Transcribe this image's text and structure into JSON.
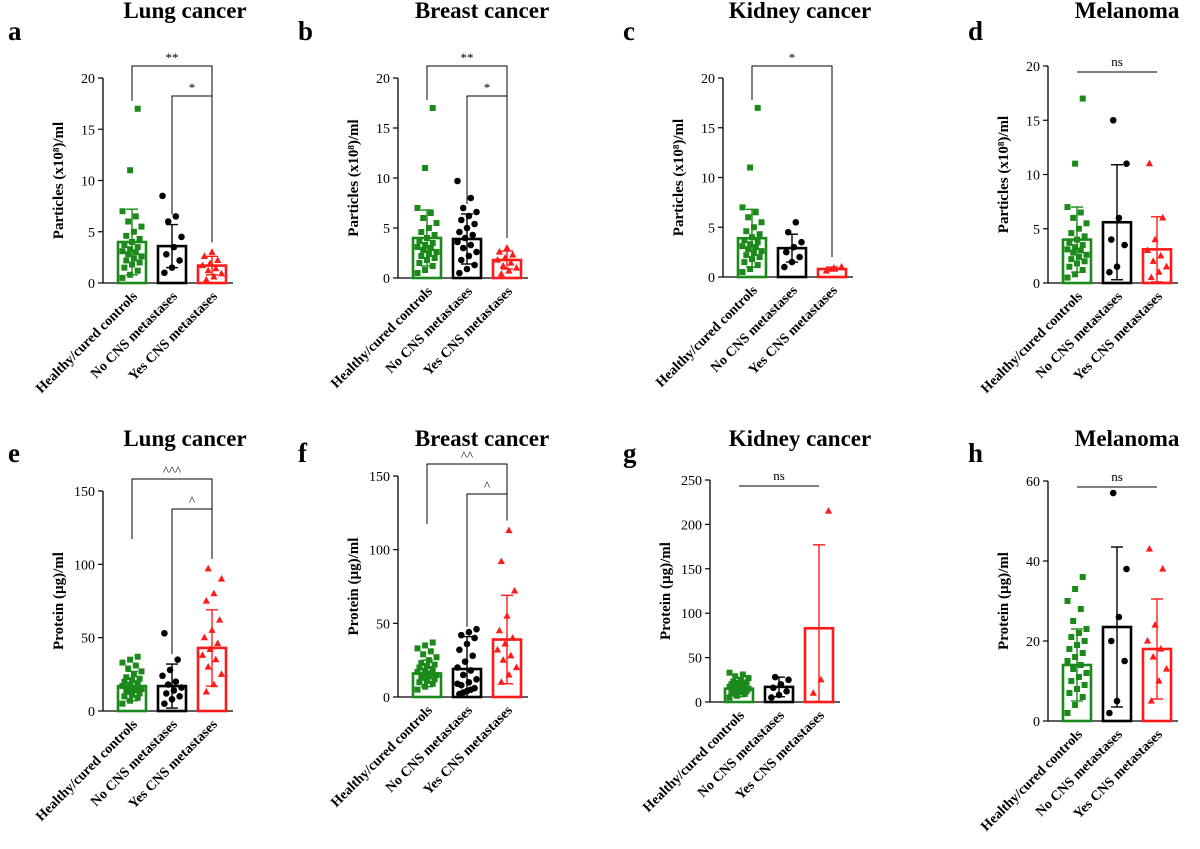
{
  "colors": {
    "green": "#1b8a1b",
    "black": "#000000",
    "red": "#ff1a1a"
  },
  "chart_data": [
    {
      "panel": "a",
      "type": "bar",
      "title": "Lung cancer",
      "ylabel": "Particles (x10⁸)/ml",
      "ylim": [
        0,
        20
      ],
      "yticks": [
        0,
        5,
        10,
        15,
        20
      ],
      "categories": [
        "Healthy/cured controls",
        "No CNS metastases",
        "Yes CNS metastases"
      ],
      "means": [
        4,
        3.6,
        1.7
      ],
      "sd": [
        3.2,
        2.1,
        0.9
      ],
      "marker": [
        "square",
        "circle",
        "triangle"
      ],
      "points": [
        [
          0.5,
          0.8,
          1.2,
          1.5,
          1.8,
          2,
          2.2,
          2.4,
          2.6,
          2.8,
          3,
          3.1,
          3.3,
          3.5,
          3.7,
          4,
          4.3,
          4.6,
          5,
          5.5,
          6,
          6.5,
          7,
          11,
          17
        ],
        [
          1,
          1.5,
          2.2,
          2.8,
          3.5,
          4.5,
          6,
          6.5,
          8.5
        ],
        [
          0.3,
          0.6,
          0.9,
          1.2,
          1.4,
          1.7,
          1.9,
          2.2,
          2.6,
          3
        ]
      ],
      "brackets": [
        {
          "from": 0,
          "to": 2,
          "label": "**"
        },
        {
          "from": 1,
          "to": 2,
          "label": "*"
        }
      ]
    },
    {
      "panel": "b",
      "type": "bar",
      "title": "Breast cancer",
      "ylabel": "Particles (x10⁸)/ml",
      "ylim": [
        0,
        20
      ],
      "yticks": [
        0,
        5,
        10,
        15,
        20
      ],
      "categories": [
        "Healthy/cured controls",
        "No CNS metastases",
        "Yes CNS metastases"
      ],
      "means": [
        4,
        3.9,
        1.8
      ],
      "sd": [
        2.8,
        2.5,
        0.9
      ],
      "marker": [
        "square",
        "circle",
        "triangle"
      ],
      "points": [
        [
          0.5,
          0.8,
          1.2,
          1.5,
          1.8,
          2,
          2.2,
          2.4,
          2.6,
          2.8,
          3,
          3.1,
          3.3,
          3.5,
          3.7,
          4,
          4.3,
          4.6,
          5,
          5.5,
          6,
          6.5,
          7,
          11,
          17
        ],
        [
          0.5,
          0.9,
          1.3,
          1.8,
          2.2,
          2.6,
          3,
          3.3,
          3.6,
          4,
          4.3,
          4.6,
          5,
          5.4,
          5.8,
          6.2,
          6.6,
          7,
          8,
          9.7
        ],
        [
          0.4,
          0.7,
          1,
          1.2,
          1.5,
          1.8,
          2,
          2.3,
          2.6,
          3
        ]
      ],
      "brackets": [
        {
          "from": 0,
          "to": 2,
          "label": "**"
        },
        {
          "from": 1,
          "to": 2,
          "label": "*"
        }
      ]
    },
    {
      "panel": "c",
      "type": "bar",
      "title": "Kidney cancer",
      "ylabel": "Particles (x10⁸)/ml",
      "ylim": [
        0,
        20
      ],
      "yticks": [
        0,
        5,
        10,
        15,
        20
      ],
      "categories": [
        "Healthy/cured controls",
        "No CNS metastases",
        "Yes CNS metastases"
      ],
      "means": [
        3.9,
        2.9,
        0.8
      ],
      "sd": [
        2.9,
        1.4,
        0.2
      ],
      "marker": [
        "square",
        "circle",
        "triangle"
      ],
      "points": [
        [
          0.5,
          0.8,
          1.2,
          1.5,
          1.8,
          2,
          2.2,
          2.4,
          2.6,
          2.8,
          3,
          3.1,
          3.3,
          3.5,
          3.7,
          4,
          4.3,
          4.6,
          5,
          5.5,
          6,
          6.5,
          7,
          11,
          17
        ],
        [
          1,
          1.5,
          2,
          2.5,
          3,
          3.5,
          4.5,
          5.5
        ],
        [
          0.6,
          0.9,
          1
        ]
      ],
      "brackets": [
        {
          "from": 0,
          "to": 2,
          "label": "*"
        }
      ]
    },
    {
      "panel": "d",
      "type": "bar",
      "title": "Melanoma",
      "ylabel": "Particles (x10⁸)/ml",
      "ylim": [
        0,
        20
      ],
      "yticks": [
        0,
        5,
        10,
        15,
        20
      ],
      "categories": [
        "Healthy/cured controls",
        "No CNS metastases",
        "Yes CNS metastases"
      ],
      "means": [
        4,
        5.6,
        3.1
      ],
      "sd": [
        3,
        5.3,
        3
      ],
      "marker": [
        "square",
        "circle",
        "triangle"
      ],
      "points": [
        [
          0.5,
          0.8,
          1.2,
          1.5,
          1.8,
          2,
          2.2,
          2.4,
          2.6,
          2.8,
          3,
          3.1,
          3.3,
          3.5,
          3.7,
          4,
          4.3,
          4.6,
          5,
          5.5,
          6,
          6.5,
          7,
          11,
          17
        ],
        [
          1,
          1.5,
          3.5,
          4,
          6,
          11,
          15
        ],
        [
          0.5,
          1,
          1.5,
          2,
          2.5,
          3,
          4,
          6,
          11
        ]
      ],
      "brackets": [
        {
          "from": 0,
          "to": 2,
          "label": "ns",
          "flat": true
        }
      ]
    },
    {
      "panel": "e",
      "type": "bar",
      "title": "Lung cancer",
      "ylabel": "Protein (µg)/ml",
      "ylim": [
        0,
        150
      ],
      "yticks": [
        0,
        50,
        100,
        150
      ],
      "categories": [
        "Healthy/cured controls",
        "No CNS metastases",
        "Yes CNS metastases"
      ],
      "means": [
        17,
        17,
        43
      ],
      "sd": [
        10,
        15,
        26
      ],
      "marker": [
        "square",
        "circle",
        "triangle"
      ],
      "points": [
        [
          5,
          7,
          9,
          10,
          11,
          12,
          13,
          14,
          15,
          15,
          16,
          17,
          18,
          19,
          20,
          21,
          22,
          23,
          25,
          27,
          29,
          31,
          33,
          35,
          37
        ],
        [
          5,
          8,
          10,
          12,
          14,
          16,
          18,
          20,
          24,
          28,
          35,
          53
        ],
        [
          13,
          18,
          25,
          30,
          35,
          38,
          42,
          46,
          50,
          55,
          62,
          75,
          80,
          90,
          97
        ]
      ],
      "brackets": [
        {
          "from": 0,
          "to": 2,
          "label": "^^^"
        },
        {
          "from": 1,
          "to": 2,
          "label": "^"
        }
      ]
    },
    {
      "panel": "f",
      "type": "bar",
      "title": "Breast cancer",
      "ylabel": "Protein (µg)/ml",
      "ylim": [
        0,
        150
      ],
      "yticks": [
        0,
        50,
        100,
        150
      ],
      "categories": [
        "Healthy/cured controls",
        "No CNS metastases",
        "Yes CNS metastases"
      ],
      "means": [
        16,
        19,
        39
      ],
      "sd": [
        9,
        22,
        30
      ],
      "marker": [
        "square",
        "circle",
        "triangle"
      ],
      "points": [
        [
          5,
          7,
          9,
          10,
          11,
          12,
          13,
          14,
          15,
          15,
          16,
          17,
          18,
          19,
          20,
          21,
          22,
          23,
          25,
          27,
          29,
          31,
          33,
          35,
          37
        ],
        [
          2,
          4,
          6,
          8,
          10,
          12,
          15,
          18,
          20,
          24,
          28,
          32,
          36,
          40,
          42,
          44,
          46,
          3,
          5,
          9
        ],
        [
          10,
          15,
          20,
          25,
          28,
          32,
          36,
          40,
          45,
          55,
          72,
          92,
          113
        ]
      ],
      "brackets": [
        {
          "from": 0,
          "to": 2,
          "label": "^^"
        },
        {
          "from": 1,
          "to": 2,
          "label": "^"
        }
      ]
    },
    {
      "panel": "g",
      "type": "bar",
      "title": "Kidney cancer",
      "ylabel": "Protein (µg)/ml",
      "ylim": [
        0,
        250
      ],
      "yticks": [
        0,
        50,
        100,
        150,
        200,
        250
      ],
      "categories": [
        "Healthy/cured controls",
        "No CNS metastases",
        "Yes CNS metastases"
      ],
      "means": [
        15,
        17,
        83
      ],
      "sd": [
        9,
        11,
        94
      ],
      "marker": [
        "square",
        "circle",
        "triangle"
      ],
      "points": [
        [
          5,
          7,
          9,
          10,
          11,
          12,
          13,
          14,
          15,
          15,
          16,
          17,
          18,
          19,
          20,
          21,
          22,
          23,
          25,
          27,
          29,
          31,
          33
        ],
        [
          5,
          8,
          12,
          16,
          20,
          25,
          28
        ],
        [
          10,
          25,
          215
        ]
      ],
      "brackets": [
        {
          "from": 0,
          "to": 2,
          "label": "ns",
          "flat": true
        }
      ]
    },
    {
      "panel": "h",
      "type": "bar",
      "title": "Melanoma",
      "ylabel": "Protein (µg)/ml",
      "ylim": [
        0,
        60
      ],
      "yticks": [
        0,
        20,
        40,
        60
      ],
      "categories": [
        "Healthy/cured controls",
        "No CNS metastases",
        "Yes CNS metastases"
      ],
      "means": [
        14,
        23.5,
        18
      ],
      "sd": [
        9,
        20,
        12.5
      ],
      "marker": [
        "square",
        "circle",
        "triangle"
      ],
      "points": [
        [
          2,
          4,
          6,
          7,
          8,
          9,
          10,
          11,
          12,
          13,
          14,
          15,
          16,
          17,
          18,
          19,
          20,
          21,
          22,
          23,
          25,
          28,
          30,
          33,
          36
        ],
        [
          2,
          5,
          15,
          20,
          26,
          38,
          57
        ],
        [
          5,
          10,
          13,
          16,
          18,
          20,
          24,
          38,
          43
        ]
      ],
      "brackets": [
        {
          "from": 0,
          "to": 2,
          "label": "ns",
          "flat": true
        }
      ]
    }
  ]
}
